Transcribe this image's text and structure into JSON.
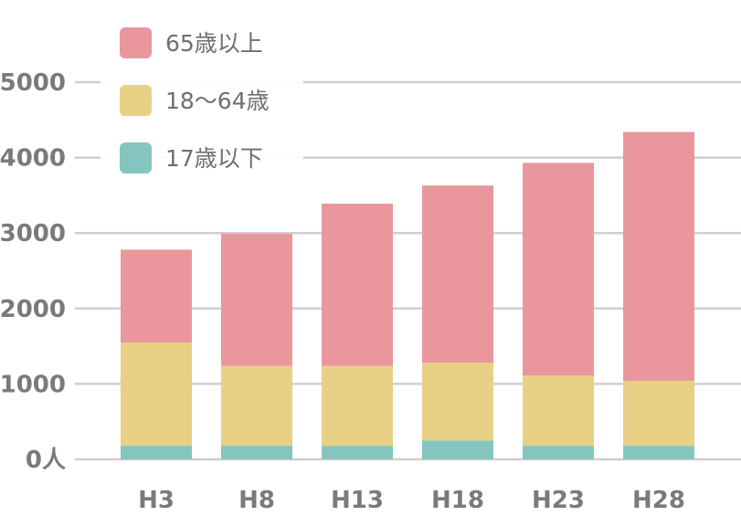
{
  "chart_data": {
    "type": "bar",
    "stacked": true,
    "categories": [
      "H3",
      "H8",
      "H13",
      "H18",
      "H23",
      "H28"
    ],
    "series": [
      {
        "name": "17歳以下",
        "color": "#84c6bf",
        "values": [
          180,
          180,
          180,
          250,
          180,
          180
        ]
      },
      {
        "name": "18〜64歳",
        "color": "#e8d085",
        "values": [
          1370,
          1060,
          1060,
          1030,
          930,
          860
        ]
      },
      {
        "name": "65歳以上",
        "color": "#e9979d",
        "values": [
          1230,
          1750,
          2150,
          2350,
          2820,
          3300
        ]
      }
    ],
    "yticks": [
      {
        "value": 0,
        "label": "0人"
      },
      {
        "value": 1000,
        "label": "1000"
      },
      {
        "value": 2000,
        "label": "2000"
      },
      {
        "value": 3000,
        "label": "3000"
      },
      {
        "value": 4000,
        "label": "4000"
      },
      {
        "value": 5000,
        "label": "5000"
      }
    ],
    "ylim": [
      0,
      5000
    ],
    "grid": true,
    "legend_position": "top-left",
    "legend_order": [
      "65歳以上",
      "18〜64歳",
      "17歳以下"
    ],
    "title": "",
    "xlabel": "",
    "ylabel": ""
  }
}
